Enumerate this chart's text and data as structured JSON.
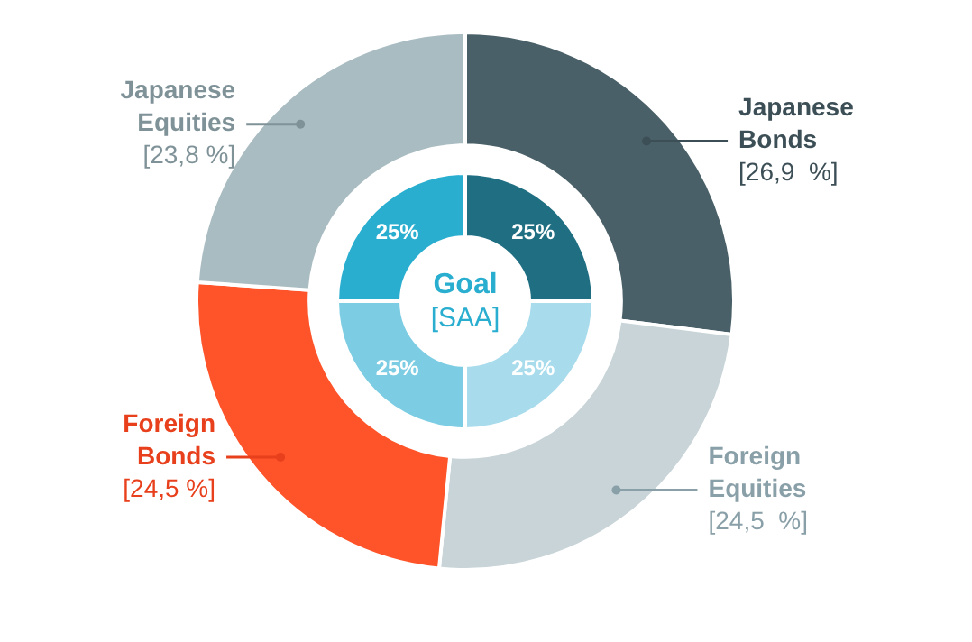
{
  "chart_data": [
    {
      "type": "donut",
      "categories": [
        "Japanese Bonds",
        "Foreign Equities",
        "Foreign Bonds",
        "Japanese Equities"
      ],
      "values": [
        26.9,
        24.5,
        24.5,
        23.8
      ],
      "colors": [
        "#4a6068",
        "#c8d4d8",
        "#ff5329",
        "#a9bcc2"
      ],
      "value_labels": [
        "[26,9  %]",
        "[24,5  %]",
        "[24,5 %]",
        "[23,8 %]"
      ],
      "legend": false
    },
    {
      "type": "donut",
      "title": "Goal",
      "subtitle": "[SAA]",
      "categories": [
        null,
        null,
        null,
        null
      ],
      "values": [
        25,
        25,
        25,
        25
      ],
      "colors": [
        "#1f6e82",
        "#a8dcec",
        "#7ccde3",
        "#2aaed0"
      ],
      "value_labels": [
        "25%",
        "25%",
        "25%",
        "25%"
      ],
      "legend": false
    }
  ]
}
